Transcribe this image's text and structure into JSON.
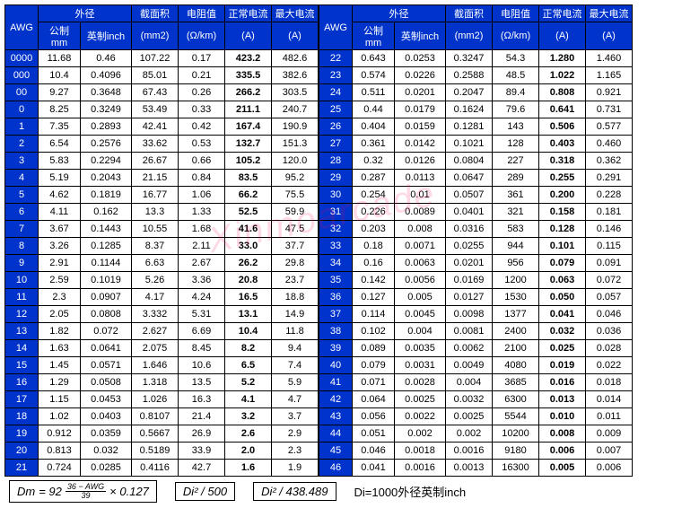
{
  "headers": {
    "awg": "AWG",
    "od": "外径",
    "mm": "公制mm",
    "inch": "英制inch",
    "area": "截面积",
    "area_u": "(mm2)",
    "res": "电阻值",
    "res_u": "(Ω/km)",
    "cur": "正常电流",
    "cur_u": "(A)",
    "max": "最大电流",
    "max_u": "(A)"
  },
  "left": [
    {
      "awg": "0000",
      "mm": "11.68",
      "in": "0.46",
      "area": "107.22",
      "res": "0.17",
      "cur": "423.2",
      "max": "482.6"
    },
    {
      "awg": "000",
      "mm": "10.4",
      "in": "0.4096",
      "area": "85.01",
      "res": "0.21",
      "cur": "335.5",
      "max": "382.6"
    },
    {
      "awg": "00",
      "mm": "9.27",
      "in": "0.3648",
      "area": "67.43",
      "res": "0.26",
      "cur": "266.2",
      "max": "303.5"
    },
    {
      "awg": "0",
      "mm": "8.25",
      "in": "0.3249",
      "area": "53.49",
      "res": "0.33",
      "cur": "211.1",
      "max": "240.7"
    },
    {
      "awg": "1",
      "mm": "7.35",
      "in": "0.2893",
      "area": "42.41",
      "res": "0.42",
      "cur": "167.4",
      "max": "190.9"
    },
    {
      "awg": "2",
      "mm": "6.54",
      "in": "0.2576",
      "area": "33.62",
      "res": "0.53",
      "cur": "132.7",
      "max": "151.3"
    },
    {
      "awg": "3",
      "mm": "5.83",
      "in": "0.2294",
      "area": "26.67",
      "res": "0.66",
      "cur": "105.2",
      "max": "120.0"
    },
    {
      "awg": "4",
      "mm": "5.19",
      "in": "0.2043",
      "area": "21.15",
      "res": "0.84",
      "cur": "83.5",
      "max": "95.2"
    },
    {
      "awg": "5",
      "mm": "4.62",
      "in": "0.1819",
      "area": "16.77",
      "res": "1.06",
      "cur": "66.2",
      "max": "75.5"
    },
    {
      "awg": "6",
      "mm": "4.11",
      "in": "0.162",
      "area": "13.3",
      "res": "1.33",
      "cur": "52.5",
      "max": "59.9"
    },
    {
      "awg": "7",
      "mm": "3.67",
      "in": "0.1443",
      "area": "10.55",
      "res": "1.68",
      "cur": "41.6",
      "max": "47.5"
    },
    {
      "awg": "8",
      "mm": "3.26",
      "in": "0.1285",
      "area": "8.37",
      "res": "2.11",
      "cur": "33.0",
      "max": "37.7"
    },
    {
      "awg": "9",
      "mm": "2.91",
      "in": "0.1144",
      "area": "6.63",
      "res": "2.67",
      "cur": "26.2",
      "max": "29.8"
    },
    {
      "awg": "10",
      "mm": "2.59",
      "in": "0.1019",
      "area": "5.26",
      "res": "3.36",
      "cur": "20.8",
      "max": "23.7"
    },
    {
      "awg": "11",
      "mm": "2.3",
      "in": "0.0907",
      "area": "4.17",
      "res": "4.24",
      "cur": "16.5",
      "max": "18.8"
    },
    {
      "awg": "12",
      "mm": "2.05",
      "in": "0.0808",
      "area": "3.332",
      "res": "5.31",
      "cur": "13.1",
      "max": "14.9"
    },
    {
      "awg": "13",
      "mm": "1.82",
      "in": "0.072",
      "area": "2.627",
      "res": "6.69",
      "cur": "10.4",
      "max": "11.8"
    },
    {
      "awg": "14",
      "mm": "1.63",
      "in": "0.0641",
      "area": "2.075",
      "res": "8.45",
      "cur": "8.2",
      "max": "9.4"
    },
    {
      "awg": "15",
      "mm": "1.45",
      "in": "0.0571",
      "area": "1.646",
      "res": "10.6",
      "cur": "6.5",
      "max": "7.4"
    },
    {
      "awg": "16",
      "mm": "1.29",
      "in": "0.0508",
      "area": "1.318",
      "res": "13.5",
      "cur": "5.2",
      "max": "5.9"
    },
    {
      "awg": "17",
      "mm": "1.15",
      "in": "0.0453",
      "area": "1.026",
      "res": "16.3",
      "cur": "4.1",
      "max": "4.7"
    },
    {
      "awg": "18",
      "mm": "1.02",
      "in": "0.0403",
      "area": "0.8107",
      "res": "21.4",
      "cur": "3.2",
      "max": "3.7"
    },
    {
      "awg": "19",
      "mm": "0.912",
      "in": "0.0359",
      "area": "0.5667",
      "res": "26.9",
      "cur": "2.6",
      "max": "2.9"
    },
    {
      "awg": "20",
      "mm": "0.813",
      "in": "0.032",
      "area": "0.5189",
      "res": "33.9",
      "cur": "2.0",
      "max": "2.3"
    },
    {
      "awg": "21",
      "mm": "0.724",
      "in": "0.0285",
      "area": "0.4116",
      "res": "42.7",
      "cur": "1.6",
      "max": "1.9"
    }
  ],
  "right": [
    {
      "awg": "22",
      "mm": "0.643",
      "in": "0.0253",
      "area": "0.3247",
      "res": "54.3",
      "cur": "1.280",
      "max": "1.460"
    },
    {
      "awg": "23",
      "mm": "0.574",
      "in": "0.0226",
      "area": "0.2588",
      "res": "48.5",
      "cur": "1.022",
      "max": "1.165"
    },
    {
      "awg": "24",
      "mm": "0.511",
      "in": "0.0201",
      "area": "0.2047",
      "res": "89.4",
      "cur": "0.808",
      "max": "0.921"
    },
    {
      "awg": "25",
      "mm": "0.44",
      "in": "0.0179",
      "area": "0.1624",
      "res": "79.6",
      "cur": "0.641",
      "max": "0.731"
    },
    {
      "awg": "26",
      "mm": "0.404",
      "in": "0.0159",
      "area": "0.1281",
      "res": "143",
      "cur": "0.506",
      "max": "0.577"
    },
    {
      "awg": "27",
      "mm": "0.361",
      "in": "0.0142",
      "area": "0.1021",
      "res": "128",
      "cur": "0.403",
      "max": "0.460"
    },
    {
      "awg": "28",
      "mm": "0.32",
      "in": "0.0126",
      "area": "0.0804",
      "res": "227",
      "cur": "0.318",
      "max": "0.362"
    },
    {
      "awg": "29",
      "mm": "0.287",
      "in": "0.0113",
      "area": "0.0647",
      "res": "289",
      "cur": "0.255",
      "max": "0.291"
    },
    {
      "awg": "30",
      "mm": "0.254",
      "in": "0.01",
      "area": "0.0507",
      "res": "361",
      "cur": "0.200",
      "max": "0.228"
    },
    {
      "awg": "31",
      "mm": "0.226",
      "in": "0.0089",
      "area": "0.0401",
      "res": "321",
      "cur": "0.158",
      "max": "0.181"
    },
    {
      "awg": "32",
      "mm": "0.203",
      "in": "0.008",
      "area": "0.0316",
      "res": "583",
      "cur": "0.128",
      "max": "0.146"
    },
    {
      "awg": "33",
      "mm": "0.18",
      "in": "0.0071",
      "area": "0.0255",
      "res": "944",
      "cur": "0.101",
      "max": "0.115"
    },
    {
      "awg": "34",
      "mm": "0.16",
      "in": "0.0063",
      "area": "0.0201",
      "res": "956",
      "cur": "0.079",
      "max": "0.091"
    },
    {
      "awg": "35",
      "mm": "0.142",
      "in": "0.0056",
      "area": "0.0169",
      "res": "1200",
      "cur": "0.063",
      "max": "0.072"
    },
    {
      "awg": "36",
      "mm": "0.127",
      "in": "0.005",
      "area": "0.0127",
      "res": "1530",
      "cur": "0.050",
      "max": "0.057"
    },
    {
      "awg": "37",
      "mm": "0.114",
      "in": "0.0045",
      "area": "0.0098",
      "res": "1377",
      "cur": "0.041",
      "max": "0.046"
    },
    {
      "awg": "38",
      "mm": "0.102",
      "in": "0.004",
      "area": "0.0081",
      "res": "2400",
      "cur": "0.032",
      "max": "0.036"
    },
    {
      "awg": "39",
      "mm": "0.089",
      "in": "0.0035",
      "area": "0.0062",
      "res": "2100",
      "cur": "0.025",
      "max": "0.028"
    },
    {
      "awg": "40",
      "mm": "0.079",
      "in": "0.0031",
      "area": "0.0049",
      "res": "4080",
      "cur": "0.019",
      "max": "0.022"
    },
    {
      "awg": "41",
      "mm": "0.071",
      "in": "0.0028",
      "area": "0.004",
      "res": "3685",
      "cur": "0.016",
      "max": "0.018"
    },
    {
      "awg": "42",
      "mm": "0.064",
      "in": "0.0025",
      "area": "0.0032",
      "res": "6300",
      "cur": "0.013",
      "max": "0.014"
    },
    {
      "awg": "43",
      "mm": "0.056",
      "in": "0.0022",
      "area": "0.0025",
      "res": "5544",
      "cur": "0.010",
      "max": "0.011"
    },
    {
      "awg": "44",
      "mm": "0.051",
      "in": "0.002",
      "area": "0.002",
      "res": "10200",
      "cur": "0.008",
      "max": "0.009"
    },
    {
      "awg": "45",
      "mm": "0.046",
      "in": "0.0018",
      "area": "0.0016",
      "res": "9180",
      "cur": "0.006",
      "max": "0.007"
    },
    {
      "awg": "46",
      "mm": "0.041",
      "in": "0.0016",
      "area": "0.0013",
      "res": "16300",
      "cur": "0.005",
      "max": "0.006"
    }
  ],
  "formulas": {
    "dm_lhs": "Dm",
    "dm_eq": "= 92",
    "dm_num": "36 − AWG",
    "dm_den": "39",
    "dm_mul": "× 0.127",
    "f2": "Di² / 500",
    "f3": "Di² / 438.489",
    "note": "Di=1000外径英制inch"
  },
  "watermark": "Xinmoarcade"
}
